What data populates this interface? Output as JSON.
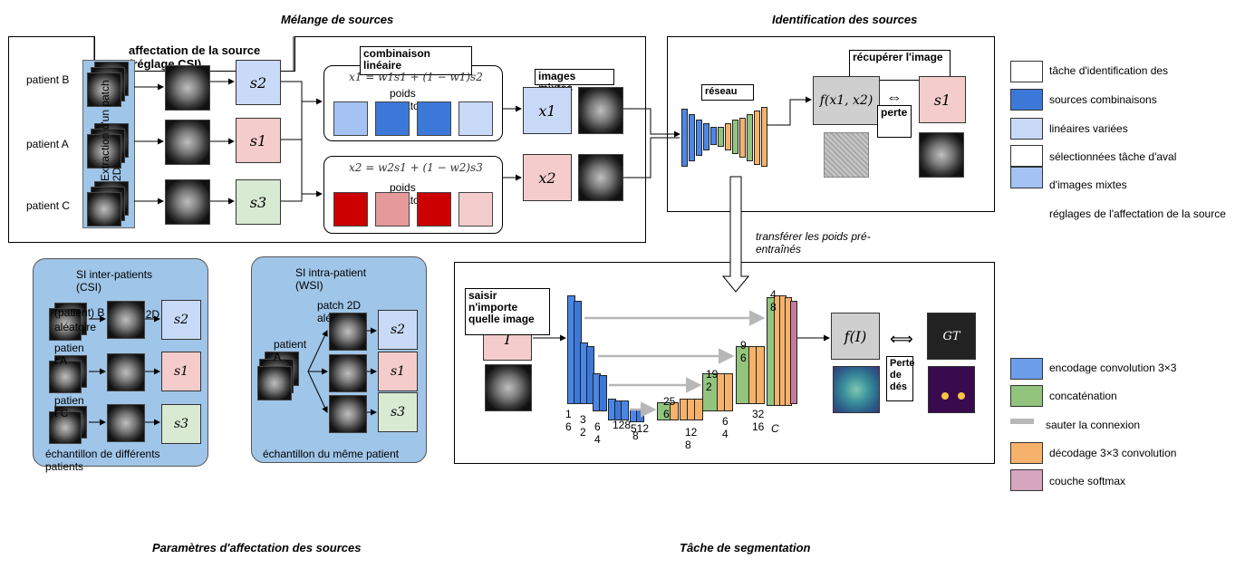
{
  "sections": {
    "source_mixing": "Mélange de sources",
    "source_identification": "Identification des sources",
    "sa_params": "Paramètres d'affectation des sources",
    "segmentation_task": "Tâche de segmentation"
  },
  "top": {
    "source_assignment": "affectation de la source (réglage CSI)",
    "patient_b": "patient B",
    "patient_a": "patient A",
    "patient_c": "patient C",
    "patch_extraction": "Extraction d'un patch 2D",
    "s2": "s2",
    "s1": "s1",
    "s3": "s3",
    "linear_combination": "combinaison linéaire",
    "formula1": "x1 = w1s1 + (1 − w1)s2",
    "formula2": "x2 = w2s1 + (1 − w2)s3",
    "random_weights_1": "poids aléatoire",
    "random_weights_2": "poids aléatoire",
    "mixed_images": "images mixtes",
    "x1": "x1",
    "x2": "x2"
  },
  "ident": {
    "network": "réseau",
    "recover_image": "récupérer l'image",
    "f_x": "f(x1, x2)",
    "loss": "perte",
    "s1": "s1"
  },
  "transfer": "transférer les poids pré-entraînés",
  "csi": {
    "title": "SI inter-patients (CSI)",
    "patient_b": "(patient) B",
    "random": "aléatoire",
    "patch2d": "patch 2D",
    "patient_a": "patien t A",
    "patient_c": "patien t C",
    "s2": "s2",
    "s1": "s1",
    "s3": "s3",
    "footer": "échantillon de différents patients"
  },
  "wsi": {
    "title": "SI intra-patient (WSI)",
    "patch": "patch 2D aléatoire",
    "patient": "patient A",
    "s2": "s2",
    "s1": "s1",
    "s3": "s3",
    "footer": "échantillon du même patient"
  },
  "seg": {
    "input_any": "saisir n'importe quelle image",
    "I": "I",
    "fI": "f(I)",
    "GT": "GT",
    "dice_loss": "Perte de dés",
    "n16": "1 6",
    "n32": "3 2",
    "n64": "6 4",
    "n128": "128",
    "n512": "512",
    "n8": "8",
    "n256": "25 6",
    "n128b": "12 8",
    "n64b": "6 4",
    "n192": "19 2",
    "n96": "9 6",
    "n48": "4 8",
    "n3216": "32 16",
    "C": "C"
  },
  "legend_top": [
    "tâche d'identification des",
    "sources combinaisons",
    "linéaires variées",
    "sélectionnées tâche d'aval",
    "d'images mixtes",
    "réglages de l'affectation de la source"
  ],
  "legend_bottom": [
    "encodage convolution 3×3",
    "concaténation",
    "sauter la connexion",
    "décodage 3×3 convolution",
    "couche softmax"
  ],
  "colors": {
    "encoder": "#4a86e8",
    "concat": "#93c47d",
    "decoder": "#f6b26b",
    "softmax": "#c27ba0",
    "skip": "#b7b7b7",
    "panel_blue": "#9fc5e8",
    "dark_blue": "#3c78d8",
    "light_blue": "#a4c2f4",
    "red": "#cc0000",
    "light_red": "#e6999a"
  }
}
